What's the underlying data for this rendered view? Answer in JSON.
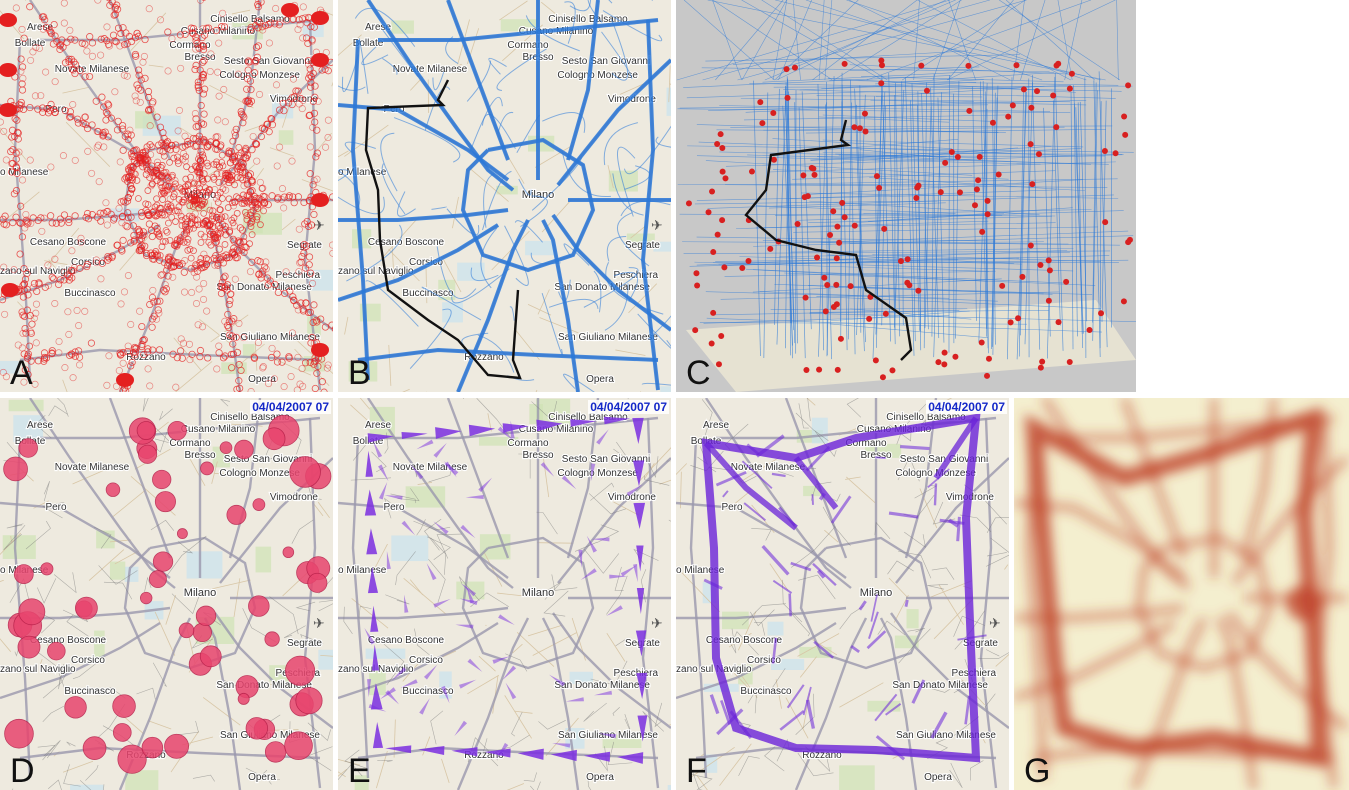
{
  "panels": [
    {
      "id": "A",
      "letter": "A",
      "style": "points"
    },
    {
      "id": "B",
      "letter": "B",
      "style": "trajectories"
    },
    {
      "id": "C",
      "letter": "C",
      "style": "cube3d"
    },
    {
      "id": "D",
      "letter": "D",
      "style": "circles",
      "date": "04/04/2007 07"
    },
    {
      "id": "E",
      "letter": "E",
      "style": "arrows",
      "date": "04/04/2007 07"
    },
    {
      "id": "F",
      "letter": "F",
      "style": "bands",
      "date": "04/04/2007 07"
    },
    {
      "id": "G",
      "letter": "G",
      "style": "density"
    }
  ],
  "places": [
    {
      "name": "Cinisello Balsamo"
    },
    {
      "name": "Cusano Milanino"
    },
    {
      "name": "Arese"
    },
    {
      "name": "Bollate"
    },
    {
      "name": "Cormano"
    },
    {
      "name": "Bresso"
    },
    {
      "name": "Sesto San Giovanni"
    },
    {
      "name": "Cologno Monzese"
    },
    {
      "name": "Novate Milanese"
    },
    {
      "name": "Vimodrone"
    },
    {
      "name": "Pero"
    },
    {
      "name": "Settimo Milanese"
    },
    {
      "name": "Milano"
    },
    {
      "name": "Segrate"
    },
    {
      "name": "Cesano Boscone"
    },
    {
      "name": "Corsico"
    },
    {
      "name": "Trezzano sul Naviglio"
    },
    {
      "name": "Buccinasco"
    },
    {
      "name": "Peschiera"
    },
    {
      "name": "San Donato Milanese"
    },
    {
      "name": "San Giuliano Milanese"
    },
    {
      "name": "Rozzano"
    },
    {
      "name": "Opera"
    }
  ],
  "colors": {
    "map_bg": "#eeeadf",
    "road": "#9a97ad",
    "points": "#e42020",
    "trajectories": "#2a78d8",
    "selected_path": "#111111",
    "sphere": "#d82020",
    "circles": "#e8456e",
    "arrows": "#7a2ee0",
    "bands": "#6a22d8",
    "density": "#c0432a"
  },
  "icons": {
    "airport": "airport-icon"
  }
}
